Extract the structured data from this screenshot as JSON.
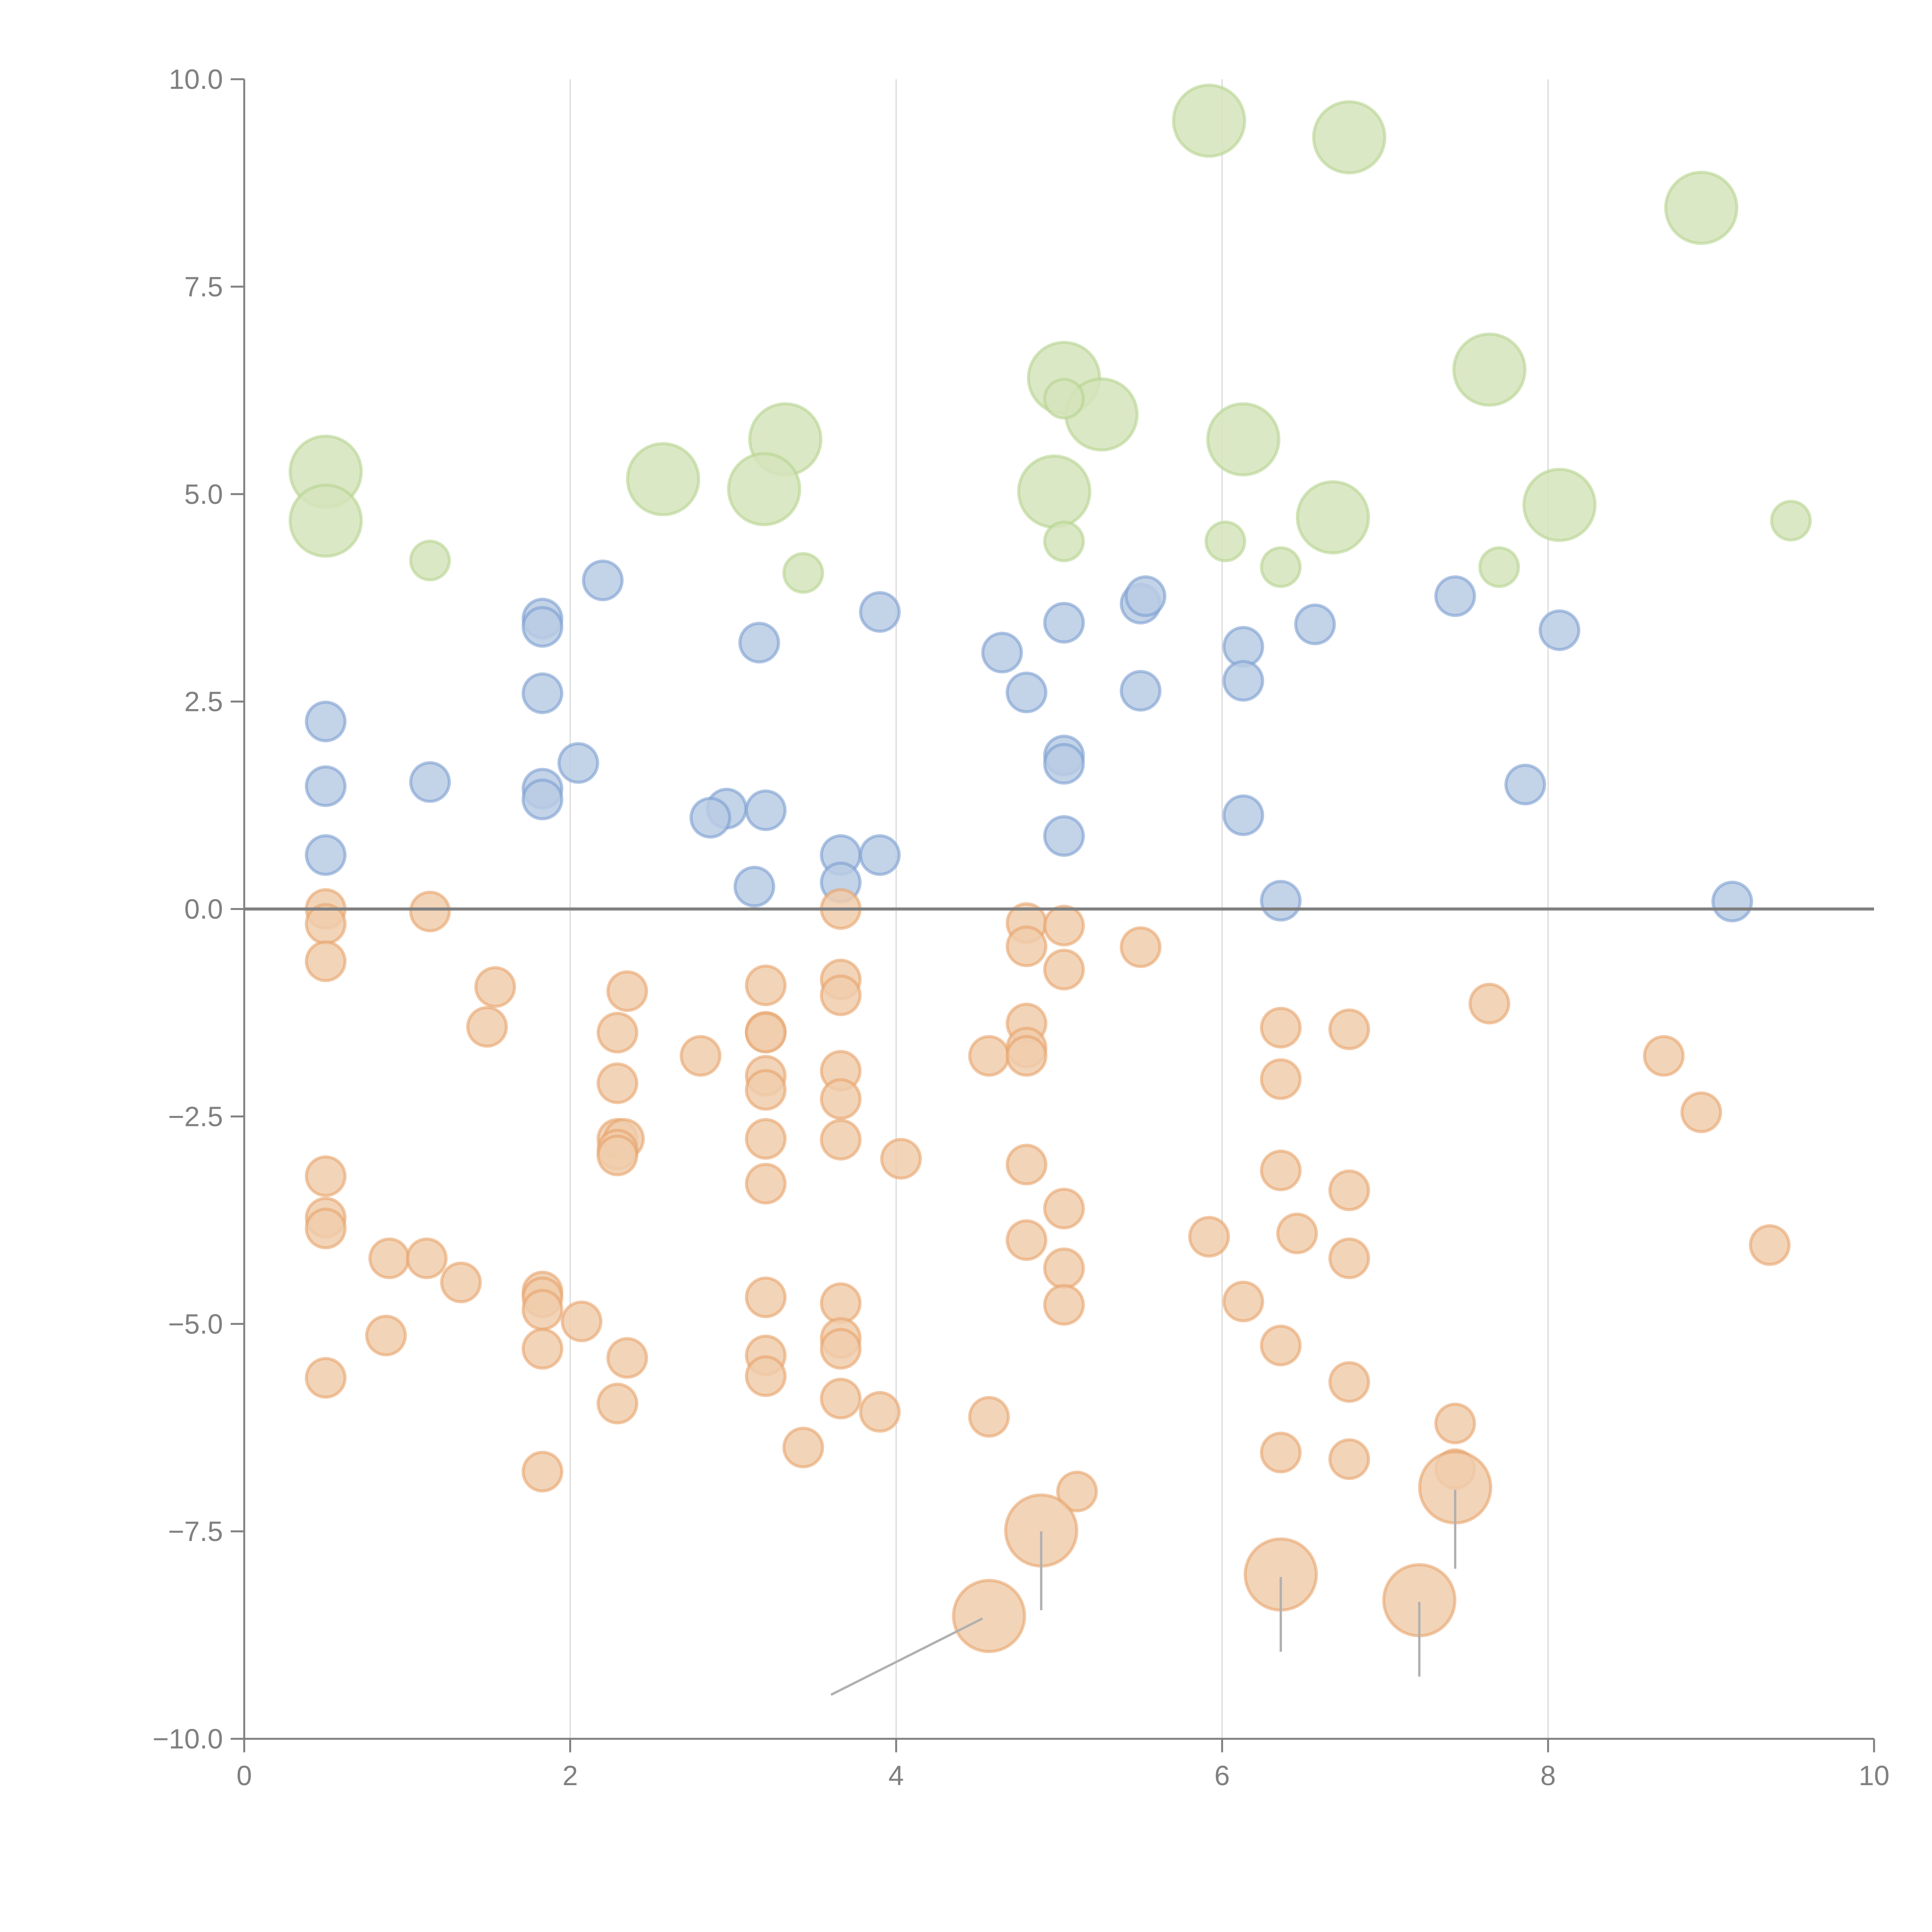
{
  "chart_data": {
    "type": "scatter",
    "title": "",
    "xlabel": "",
    "ylabel": "",
    "xlim": [
      0,
      10
    ],
    "ylim": [
      -10,
      10
    ],
    "grid": "vertical",
    "legend": "none",
    "xticks": [
      "0",
      "2",
      "4",
      "6",
      "8",
      "10"
    ],
    "yticks": [
      "−10.0",
      "−7.5",
      "−5.0",
      "−2.5",
      "0.0",
      "2.5",
      "5.0",
      "7.5",
      "10.0"
    ],
    "xtick_values": [
      0,
      2,
      4,
      6,
      8,
      10
    ],
    "ytick_values": [
      -10,
      -7.5,
      -5,
      -2.5,
      0,
      2.5,
      5,
      7.5,
      10
    ],
    "baseline_y": 0,
    "colors": {
      "green_fill": "#d5e4bb",
      "green_stroke": "#b5d38f",
      "blue_fill": "#b8cbe4",
      "blue_stroke": "#7b9fd1",
      "orange_fill": "#f0ccac",
      "orange_stroke": "#e8a46a",
      "axis": "#808080",
      "grid": "#d9d9d9",
      "annotation_line": "#b0b0b0"
    },
    "series": [
      {
        "name": "green-large",
        "size": "large",
        "color": "green",
        "points": [
          [
            5.92,
            9.5
          ],
          [
            6.78,
            9.3
          ],
          [
            8.94,
            8.45
          ],
          [
            5.03,
            6.4
          ],
          [
            5.26,
            5.96
          ],
          [
            7.64,
            6.5
          ],
          [
            3.32,
            5.66
          ],
          [
            6.13,
            5.66
          ],
          [
            0.5,
            5.27
          ],
          [
            0.5,
            4.68
          ],
          [
            2.57,
            5.18
          ],
          [
            3.19,
            5.06
          ],
          [
            4.97,
            5.03
          ],
          [
            6.68,
            4.72
          ],
          [
            8.07,
            4.87
          ]
        ]
      },
      {
        "name": "green-small",
        "size": "small",
        "color": "green",
        "points": [
          [
            1.14,
            4.2
          ],
          [
            3.43,
            4.05
          ],
          [
            5.03,
            6.15
          ],
          [
            5.03,
            4.43
          ],
          [
            6.02,
            4.43
          ],
          [
            6.36,
            4.12
          ],
          [
            7.7,
            4.12
          ],
          [
            9.49,
            4.68
          ]
        ]
      },
      {
        "name": "blue",
        "size": "small",
        "color": "blue",
        "points": [
          [
            2.2,
            3.96
          ],
          [
            1.83,
            3.5
          ],
          [
            1.83,
            3.4
          ],
          [
            3.16,
            3.21
          ],
          [
            3.9,
            3.58
          ],
          [
            4.65,
            3.09
          ],
          [
            5.03,
            3.45
          ],
          [
            5.5,
            3.68
          ],
          [
            5.53,
            3.77
          ],
          [
            6.57,
            3.43
          ],
          [
            7.43,
            3.77
          ],
          [
            8.07,
            3.36
          ],
          [
            6.13,
            3.16
          ],
          [
            6.13,
            2.75
          ],
          [
            5.5,
            2.63
          ],
          [
            4.8,
            2.61
          ],
          [
            1.83,
            2.6
          ],
          [
            0.5,
            2.26
          ],
          [
            2.05,
            1.76
          ],
          [
            5.03,
            1.85
          ],
          [
            5.03,
            1.75
          ],
          [
            1.83,
            1.45
          ],
          [
            1.83,
            1.32
          ],
          [
            0.5,
            1.48
          ],
          [
            1.14,
            1.53
          ],
          [
            2.96,
            1.21
          ],
          [
            3.2,
            1.19
          ],
          [
            2.86,
            1.1
          ],
          [
            7.86,
            1.5
          ],
          [
            6.13,
            1.13
          ],
          [
            5.03,
            0.88
          ],
          [
            0.5,
            0.65
          ],
          [
            3.66,
            0.65
          ],
          [
            3.9,
            0.65
          ],
          [
            3.13,
            0.27
          ],
          [
            3.66,
            0.32
          ],
          [
            6.36,
            0.1
          ],
          [
            9.13,
            0.09
          ]
        ]
      },
      {
        "name": "orange-small",
        "size": "small",
        "color": "orange",
        "points": [
          [
            0.5,
            0.0
          ],
          [
            0.5,
            -0.18
          ],
          [
            1.14,
            -0.03
          ],
          [
            0.5,
            -0.63
          ],
          [
            3.66,
            0.0
          ],
          [
            4.8,
            -0.17
          ],
          [
            5.03,
            -0.2
          ],
          [
            4.8,
            -0.45
          ],
          [
            5.5,
            -0.46
          ],
          [
            5.03,
            -0.73
          ],
          [
            1.54,
            -0.94
          ],
          [
            2.35,
            -0.99
          ],
          [
            3.2,
            -0.92
          ],
          [
            3.66,
            -0.85
          ],
          [
            3.66,
            -1.04
          ],
          [
            7.64,
            -1.14
          ],
          [
            1.49,
            -1.42
          ],
          [
            2.29,
            -1.49
          ],
          [
            3.2,
            -1.48
          ],
          [
            3.2,
            -1.49
          ],
          [
            4.8,
            -1.38
          ],
          [
            6.36,
            -1.43
          ],
          [
            6.78,
            -1.45
          ],
          [
            2.8,
            -1.77
          ],
          [
            4.57,
            -1.77
          ],
          [
            4.8,
            -1.67
          ],
          [
            4.8,
            -1.77
          ],
          [
            8.71,
            -1.77
          ],
          [
            2.29,
            -2.1
          ],
          [
            3.2,
            -2.01
          ],
          [
            3.2,
            -2.18
          ],
          [
            3.66,
            -1.95
          ],
          [
            3.66,
            -2.29
          ],
          [
            6.36,
            -2.05
          ],
          [
            8.94,
            -2.45
          ],
          [
            2.29,
            -2.77
          ],
          [
            2.33,
            -2.77
          ],
          [
            2.29,
            -2.9
          ],
          [
            2.29,
            -2.97
          ],
          [
            3.2,
            -2.77
          ],
          [
            3.66,
            -2.78
          ],
          [
            4.03,
            -3.01
          ],
          [
            4.8,
            -3.08
          ],
          [
            3.2,
            -3.31
          ],
          [
            0.5,
            -3.22
          ],
          [
            6.36,
            -3.15
          ],
          [
            6.78,
            -3.39
          ],
          [
            5.03,
            -3.61
          ],
          [
            0.5,
            -3.72
          ],
          [
            0.5,
            -3.85
          ],
          [
            4.8,
            -3.99
          ],
          [
            5.92,
            -3.95
          ],
          [
            6.46,
            -3.91
          ],
          [
            9.36,
            -4.05
          ],
          [
            0.89,
            -4.21
          ],
          [
            1.12,
            -4.21
          ],
          [
            1.33,
            -4.5
          ],
          [
            1.83,
            -4.61
          ],
          [
            1.83,
            -4.68
          ],
          [
            6.78,
            -4.21
          ],
          [
            5.03,
            -4.33
          ],
          [
            1.83,
            -4.83
          ],
          [
            3.2,
            -4.68
          ],
          [
            3.66,
            -4.75
          ],
          [
            6.13,
            -4.73
          ],
          [
            5.03,
            -4.77
          ],
          [
            2.07,
            -4.97
          ],
          [
            0.87,
            -5.14
          ],
          [
            3.66,
            -5.17
          ],
          [
            3.66,
            -5.3
          ],
          [
            1.83,
            -5.3
          ],
          [
            2.35,
            -5.41
          ],
          [
            3.2,
            -5.38
          ],
          [
            3.2,
            -5.63
          ],
          [
            6.36,
            -5.26
          ],
          [
            0.5,
            -5.65
          ],
          [
            6.78,
            -5.7
          ],
          [
            2.29,
            -5.96
          ],
          [
            3.66,
            -5.9
          ],
          [
            3.9,
            -6.06
          ],
          [
            4.57,
            -6.12
          ],
          [
            7.43,
            -6.2
          ],
          [
            3.43,
            -6.49
          ],
          [
            6.36,
            -6.55
          ],
          [
            6.78,
            -6.63
          ],
          [
            7.43,
            -6.75
          ],
          [
            1.83,
            -6.78
          ],
          [
            5.11,
            -7.02
          ]
        ]
      },
      {
        "name": "orange-large",
        "size": "large",
        "color": "orange",
        "points": [
          [
            4.89,
            -7.49
          ],
          [
            7.43,
            -6.97
          ],
          [
            6.36,
            -8.02
          ],
          [
            7.21,
            -8.33
          ],
          [
            4.57,
            -8.52
          ]
        ],
        "annotation_lines": [
          [
            [
              4.89,
              -7.5
            ],
            [
              4.89,
              -8.45
            ]
          ],
          [
            [
              7.43,
              -7.0
            ],
            [
              7.43,
              -7.95
            ]
          ],
          [
            [
              6.36,
              -8.05
            ],
            [
              6.36,
              -8.95
            ]
          ],
          [
            [
              7.21,
              -8.35
            ],
            [
              7.21,
              -9.25
            ]
          ],
          [
            [
              4.53,
              -8.55
            ],
            [
              3.6,
              -9.47
            ]
          ]
        ]
      }
    ]
  }
}
